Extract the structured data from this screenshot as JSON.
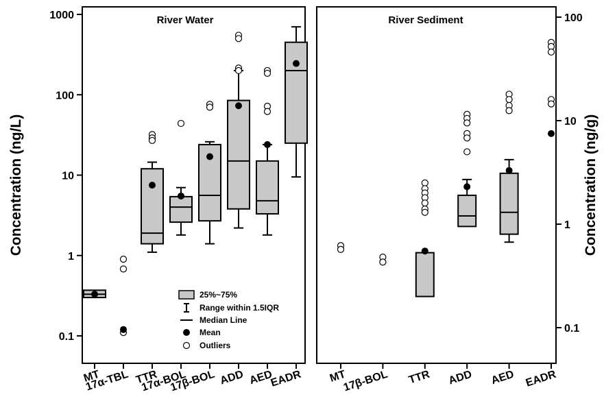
{
  "colors": {
    "box_fill": "#c8c8c8",
    "stroke": "#000000",
    "mean": "#000000",
    "outlier_fill": "#ffffff",
    "background": "#ffffff"
  },
  "legend": {
    "items": [
      {
        "key": "box",
        "label": "25%~75%"
      },
      {
        "key": "range",
        "label": "Range within 1.5IQR"
      },
      {
        "key": "median",
        "label": "Median Line"
      },
      {
        "key": "mean",
        "label": "Mean"
      },
      {
        "key": "outliers",
        "label": "Outliers"
      }
    ]
  },
  "chart_data": [
    {
      "type": "box",
      "title": "River Water",
      "ylabel": "Concentration (ng/L)",
      "yscale": "log",
      "ylim": [
        0.05,
        1200
      ],
      "yticks": [
        0.1,
        1,
        10,
        100,
        1000
      ],
      "ytick_labels": [
        "0.1",
        "1",
        "10",
        "100",
        "1000"
      ],
      "categories": [
        "MT",
        "17α-TBL",
        "TTR",
        "17α-BOL",
        "17β-BOL",
        "ADD",
        "AED",
        "EADR"
      ],
      "boxes": [
        {
          "category": "MT",
          "q1": 0.3,
          "median": 0.33,
          "q3": 0.37,
          "whisker_low": null,
          "whisker_high": null,
          "mean": 0.33,
          "outliers": []
        },
        {
          "category": "17α-TBL",
          "q1": null,
          "median": null,
          "q3": null,
          "whisker_low": null,
          "whisker_high": null,
          "mean": 0.12,
          "outliers": [
            0.9,
            0.68,
            0.11
          ]
        },
        {
          "category": "TTR",
          "q1": 1.4,
          "median": 1.9,
          "q3": 12,
          "whisker_low": 1.1,
          "whisker_high": 14.5,
          "mean": 7.5,
          "outliers": [
            32,
            29,
            27
          ]
        },
        {
          "category": "17α-BOL",
          "q1": 2.6,
          "median": 4.0,
          "q3": 5.4,
          "whisker_low": 1.8,
          "whisker_high": 7.0,
          "mean": 5.5,
          "outliers": [
            44
          ]
        },
        {
          "category": "17β-BOL",
          "q1": 2.7,
          "median": 5.6,
          "q3": 24,
          "whisker_low": 1.4,
          "whisker_high": 26,
          "mean": 17,
          "outliers": [
            76,
            70
          ]
        },
        {
          "category": "ADD",
          "q1": 3.8,
          "median": 15,
          "q3": 85,
          "whisker_low": 2.2,
          "whisker_high": 200,
          "mean": 73,
          "outliers": [
            550,
            500,
            215,
            200
          ]
        },
        {
          "category": "AED",
          "q1": 3.3,
          "median": 4.8,
          "q3": 15,
          "whisker_low": 1.8,
          "whisker_high": 24,
          "mean": 24,
          "outliers": [
            200,
            185,
            72,
            62
          ]
        },
        {
          "category": "EADR",
          "q1": 25,
          "median": 200,
          "q3": 450,
          "whisker_low": 9.5,
          "whisker_high": 700,
          "mean": 245,
          "outliers": []
        }
      ]
    },
    {
      "type": "box",
      "title": "River Sediment",
      "ylabel": "Concentration (ng/g)",
      "yscale": "log",
      "ylim": [
        0.05,
        120
      ],
      "yticks": [
        0.1,
        1,
        10,
        100
      ],
      "ytick_labels": [
        "0.1",
        "1",
        "10",
        "100"
      ],
      "categories": [
        "MT",
        "17β-BOL",
        "TTR",
        "ADD",
        "AED",
        "EADR"
      ],
      "boxes": [
        {
          "category": "MT",
          "q1": null,
          "median": null,
          "q3": null,
          "whisker_low": null,
          "whisker_high": null,
          "mean": null,
          "outliers": [
            0.62,
            0.57
          ]
        },
        {
          "category": "17β-BOL",
          "q1": null,
          "median": null,
          "q3": null,
          "whisker_low": null,
          "whisker_high": null,
          "mean": null,
          "outliers": [
            0.48,
            0.43
          ]
        },
        {
          "category": "TTR",
          "q1": 0.2,
          "median": null,
          "q3": 0.53,
          "whisker_low": null,
          "whisker_high": null,
          "mean": 0.55,
          "outliers": [
            2.5,
            2.2,
            2.0,
            1.8,
            1.6,
            1.4,
            1.3
          ]
        },
        {
          "category": "ADD",
          "q1": 0.95,
          "median": 1.2,
          "q3": 1.9,
          "whisker_low": null,
          "whisker_high": 2.7,
          "mean": 2.3,
          "outliers": [
            11.5,
            10.5,
            9.5,
            7.5,
            6.8,
            5.0
          ]
        },
        {
          "category": "AED",
          "q1": 0.8,
          "median": 1.3,
          "q3": 3.1,
          "whisker_low": 0.67,
          "whisker_high": 4.2,
          "mean": 3.3,
          "outliers": [
            18,
            16,
            14,
            12.5
          ]
        },
        {
          "category": "EADR",
          "q1": null,
          "median": null,
          "q3": null,
          "whisker_low": null,
          "whisker_high": null,
          "mean": 7.5,
          "outliers": [
            57,
            52,
            46,
            16,
            14.5
          ]
        }
      ]
    }
  ]
}
